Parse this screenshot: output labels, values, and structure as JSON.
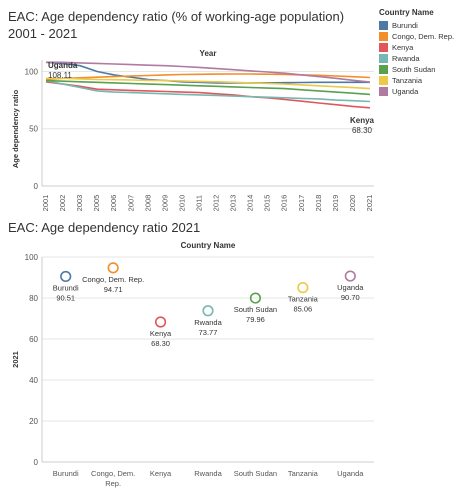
{
  "colors": {
    "Burundi": "#4e79a7",
    "Congo, Dem. Rep.": "#f28e2b",
    "Kenya": "#e15759",
    "Rwanda": "#76b7b2",
    "South Sudan": "#59a14f",
    "Tanzania": "#edc948",
    "Uganda": "#b07aa1"
  },
  "legend": {
    "title": "Country Name",
    "items": [
      "Burundi",
      "Congo, Dem. Rep.",
      "Kenya",
      "Rwanda",
      "South Sudan",
      "Tanzania",
      "Uganda"
    ]
  },
  "chart_data": [
    {
      "type": "line",
      "title": "EAC: Age dependency ratio (% of working-age population) 2001 - 2021",
      "xlabel": "Year",
      "ylabel": "Age dependency ratio",
      "x_position": "top",
      "x": [
        2001,
        2002,
        2003,
        2005,
        2006,
        2007,
        2008,
        2009,
        2010,
        2011,
        2012,
        2013,
        2014,
        2015,
        2016,
        2017,
        2018,
        2019,
        2020,
        2021
      ],
      "ylim": [
        0,
        110
      ],
      "yticks": [
        0,
        50,
        100
      ],
      "grid": true,
      "series": [
        {
          "name": "Burundi",
          "values": [
            108,
            107,
            105,
            100,
            97,
            95,
            93,
            92,
            91,
            90.5,
            90,
            90,
            90,
            90,
            90.2,
            90.4,
            90.5,
            90.5,
            90.5,
            90.51
          ]
        },
        {
          "name": "Congo, Dem. Rep.",
          "values": [
            93,
            94,
            94.5,
            95,
            95.5,
            96,
            96.5,
            97,
            97.3,
            97.5,
            97.7,
            97.8,
            97.8,
            97.6,
            97.3,
            97,
            96.6,
            96,
            95.4,
            94.71
          ]
        },
        {
          "name": "Kenya",
          "values": [
            91,
            89,
            87,
            84.5,
            84,
            83.5,
            83,
            82.5,
            82,
            81.5,
            80.5,
            79.5,
            78,
            77,
            75.5,
            74,
            72.5,
            71,
            69.5,
            68.3
          ]
        },
        {
          "name": "Rwanda",
          "values": [
            92,
            89,
            86,
            83,
            82,
            81.5,
            81,
            80.5,
            80,
            79.5,
            79,
            78.5,
            78,
            77.5,
            77,
            76.5,
            76,
            75,
            74.5,
            73.77
          ]
        },
        {
          "name": "South Sudan",
          "values": [
            92,
            91.5,
            91,
            90.5,
            90,
            89.5,
            89,
            88.5,
            88,
            87.5,
            87,
            86.5,
            86,
            85.5,
            85,
            84,
            83,
            82,
            81,
            79.96
          ]
        },
        {
          "name": "Tanzania",
          "values": [
            94,
            94,
            93.5,
            93,
            92.8,
            92.5,
            92.2,
            92,
            91.7,
            91.3,
            91,
            90.5,
            90,
            89.5,
            89,
            88.3,
            87.5,
            86.7,
            85.9,
            85.06
          ]
        },
        {
          "name": "Uganda",
          "values": [
            108.11,
            108,
            107.5,
            107,
            106.5,
            106,
            105.5,
            105,
            104.3,
            103.5,
            102.5,
            101.5,
            100.5,
            99.5,
            98.5,
            97,
            95.5,
            94,
            92.3,
            90.7
          ]
        }
      ],
      "annotations": [
        {
          "country": "Uganda",
          "year": "2001",
          "value": "108.11"
        },
        {
          "country": "Kenya",
          "year": "2021",
          "value": "68.30"
        }
      ]
    },
    {
      "type": "scatter",
      "title": "EAC: Age dependency ratio 2021",
      "xlabel": "Country Name",
      "x_position": "top",
      "ylabel": "2021",
      "categories": [
        "Burundi",
        "Congo, Dem. Rep.",
        "Kenya",
        "Rwanda",
        "South Sudan",
        "Tanzania",
        "Uganda"
      ],
      "values": [
        90.51,
        94.71,
        68.3,
        73.77,
        79.96,
        85.06,
        90.7
      ],
      "labels": [
        "90.51",
        "94.71",
        "68.30",
        "73.77",
        "79.96",
        "85.06",
        "90.70"
      ],
      "ylim": [
        0,
        100
      ],
      "yticks": [
        0,
        20,
        40,
        60,
        80,
        100
      ],
      "grid": true
    }
  ]
}
